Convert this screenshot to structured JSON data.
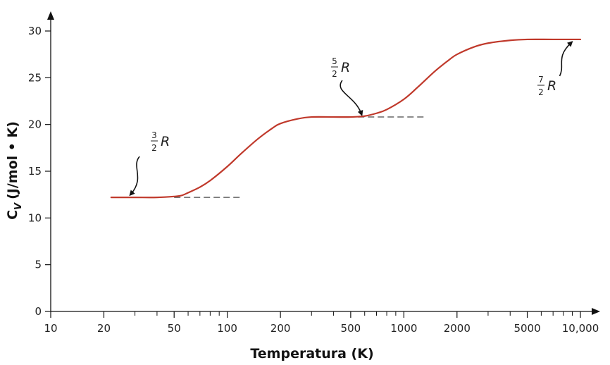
{
  "chart_data": {
    "type": "line",
    "x_scale": "log",
    "xlabel": "Temperatura (K)",
    "ylabel": {
      "symbol": "C",
      "subscript": "V",
      "unit": "(J/mol • K)"
    },
    "xlim": [
      10,
      10000
    ],
    "ylim": [
      0,
      30
    ],
    "x_ticks": [
      {
        "value": 10,
        "label": "10"
      },
      {
        "value": 20,
        "label": "20"
      },
      {
        "value": 50,
        "label": "50"
      },
      {
        "value": 100,
        "label": "100"
      },
      {
        "value": 200,
        "label": "200"
      },
      {
        "value": 500,
        "label": "500"
      },
      {
        "value": 1000,
        "label": "1000"
      },
      {
        "value": 2000,
        "label": "2000"
      },
      {
        "value": 5000,
        "label": "5000"
      },
      {
        "value": 10000,
        "label": "10,000"
      }
    ],
    "x_minor_ticks": [
      30,
      40,
      60,
      70,
      80,
      90,
      300,
      400,
      600,
      700,
      800,
      900,
      3000,
      4000,
      6000,
      7000,
      8000,
      9000
    ],
    "y_ticks": [
      {
        "value": 0,
        "label": "0"
      },
      {
        "value": 5,
        "label": "5"
      },
      {
        "value": 10,
        "label": "10"
      },
      {
        "value": 15,
        "label": "15"
      },
      {
        "value": 20,
        "label": "20"
      },
      {
        "value": 25,
        "label": "25"
      },
      {
        "value": 30,
        "label": "30"
      }
    ],
    "grid": false,
    "series": [
      {
        "color": "#c0392b",
        "x": [
          22,
          30,
          40,
          50,
          55,
          60,
          70,
          80,
          100,
          120,
          150,
          180,
          200,
          250,
          300,
          400,
          500,
          600,
          700,
          800,
          1000,
          1200,
          1500,
          1800,
          2000,
          2500,
          3000,
          4000,
          5000,
          7000,
          10000
        ],
        "y": [
          12.2,
          12.2,
          12.2,
          12.3,
          12.4,
          12.7,
          13.3,
          14.0,
          15.5,
          16.9,
          18.5,
          19.6,
          20.1,
          20.6,
          20.8,
          20.8,
          20.8,
          20.9,
          21.2,
          21.6,
          22.7,
          24.0,
          25.7,
          26.9,
          27.5,
          28.3,
          28.7,
          29.0,
          29.1,
          29.1,
          29.1
        ]
      }
    ],
    "reference_lines": [
      {
        "y": 12.2,
        "x_from": 50,
        "x_to": 120,
        "color": "#666666"
      },
      {
        "y": 20.8,
        "x_from": 550,
        "x_to": 1300,
        "color": "#666666"
      }
    ],
    "annotations": [
      {
        "numerator": "3",
        "denominator": "2",
        "symbol": "R",
        "at_x": 28,
        "at_y": 12.2
      },
      {
        "numerator": "5",
        "denominator": "2",
        "symbol": "R",
        "at_x": 590,
        "at_y": 20.8
      },
      {
        "numerator": "7",
        "denominator": "2",
        "symbol": "R",
        "at_x": 9000,
        "at_y": 29.1
      }
    ]
  }
}
